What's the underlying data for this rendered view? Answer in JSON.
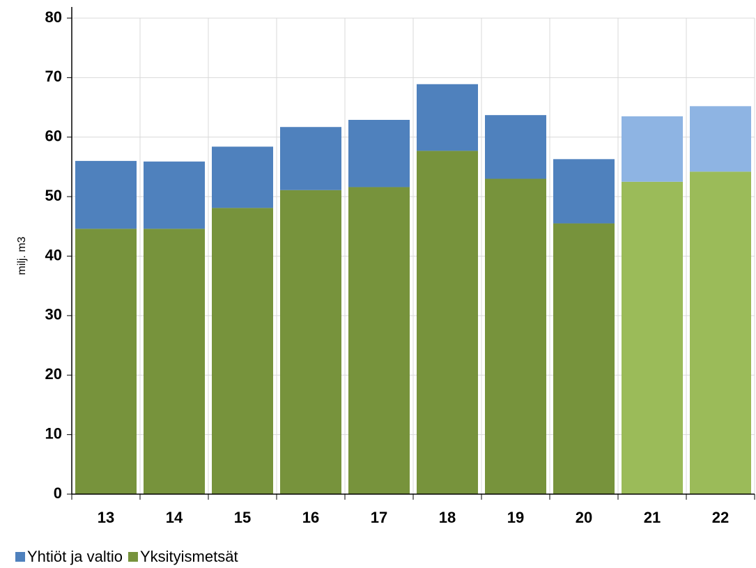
{
  "chart_data": {
    "type": "stacked_bar",
    "categories": [
      "13",
      "14",
      "15",
      "16",
      "17",
      "18",
      "19",
      "20",
      "21",
      "22"
    ],
    "y_label": "milj. m3",
    "series": [
      {
        "name": "Yhtiöt ja valtio",
        "values": [
          11.4,
          11.3,
          10.3,
          10.6,
          11.3,
          11.2,
          10.7,
          10.8,
          11.0,
          11.0
        ],
        "colors": [
          "#4f81bd",
          "#4f81bd",
          "#4f81bd",
          "#4f81bd",
          "#4f81bd",
          "#4f81bd",
          "#4f81bd",
          "#4f81bd",
          "#8eb4e3",
          "#8eb4e3"
        ]
      },
      {
        "name": "Yksityismetsät",
        "values": [
          44.6,
          44.6,
          48.1,
          51.1,
          51.6,
          57.7,
          53.0,
          45.5,
          52.5,
          54.2
        ],
        "colors": [
          "#77933c",
          "#77933c",
          "#77933c",
          "#77933c",
          "#77933c",
          "#77933c",
          "#77933c",
          "#77933c",
          "#9bbb59",
          "#9bbb59"
        ]
      }
    ],
    "ylim": [
      0,
      80
    ],
    "yticks": [
      0,
      10,
      20,
      30,
      40,
      50,
      60,
      70,
      80
    ],
    "grid": true
  }
}
